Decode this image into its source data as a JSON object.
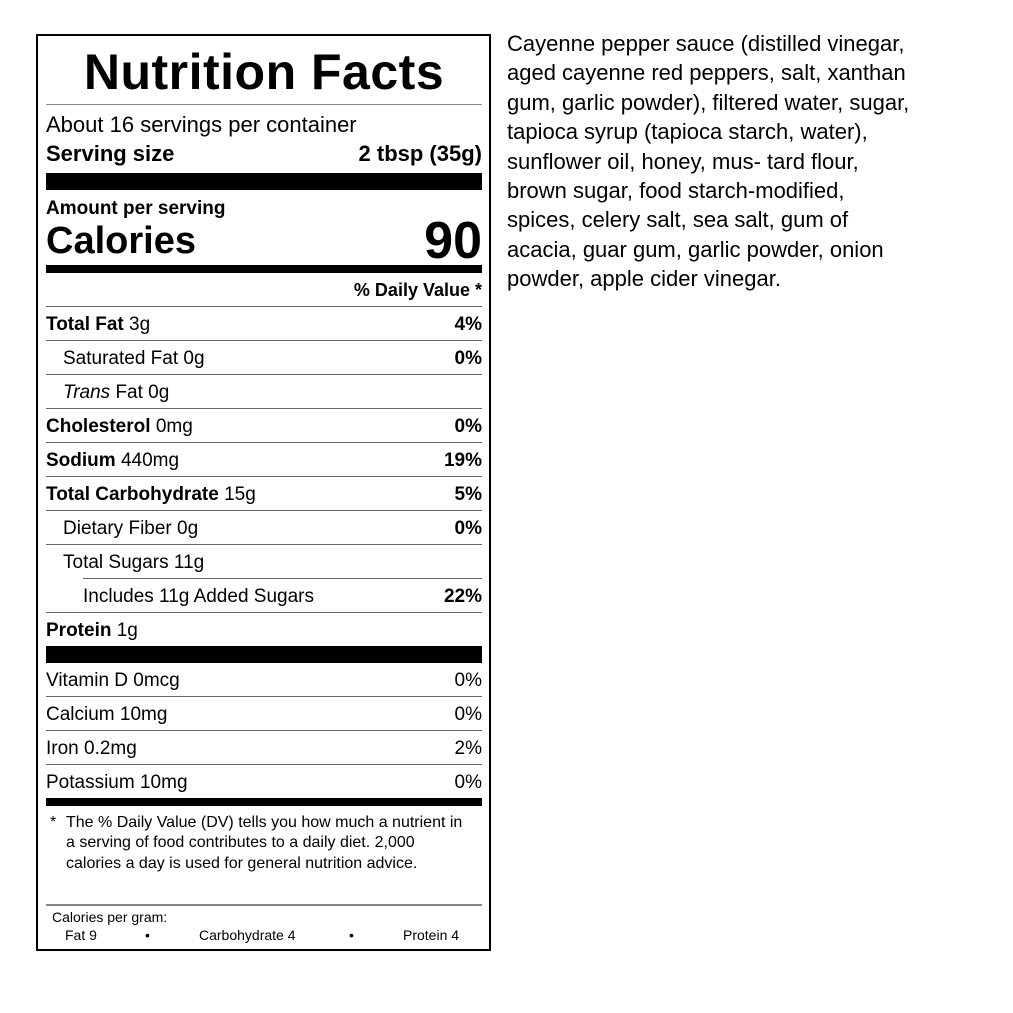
{
  "label": {
    "title": "Nutrition Facts",
    "servings_per_container": "About 16 servings per container",
    "serving_size_label": "Serving size",
    "serving_size_value": "2 tbsp (35g)",
    "amount_per_serving": "Amount per serving",
    "calories_label": "Calories",
    "calories_value": "90",
    "daily_value_header": "% Daily Value *",
    "nutrients": [
      {
        "name": "Total Fat",
        "amount": "3g",
        "dv": "4%"
      },
      {
        "name": "Saturated Fat",
        "amount": "0g",
        "dv": "0%"
      },
      {
        "name": "Trans",
        "suffix": "Fat 0g",
        "dv": ""
      },
      {
        "name": "Cholesterol",
        "amount": "0mg",
        "dv": "0%"
      },
      {
        "name": "Sodium",
        "amount": "440mg",
        "dv": "19%"
      },
      {
        "name": "Total Carbohydrate",
        "amount": "15g",
        "dv": "5%"
      },
      {
        "name": "Dietary Fiber",
        "amount": "0g",
        "dv": "0%"
      },
      {
        "name": "Total Sugars",
        "amount": "11g",
        "dv": ""
      },
      {
        "name": "Includes 11g Added Sugars",
        "amount": "",
        "dv": "22%"
      },
      {
        "name": "Protein",
        "amount": "1g",
        "dv": ""
      }
    ],
    "vitamins": [
      {
        "name": "Vitamin D 0mcg",
        "dv": "0%"
      },
      {
        "name": "Calcium 10mg",
        "dv": "0%"
      },
      {
        "name": "Iron 0.2mg",
        "dv": "2%"
      },
      {
        "name": "Potassium 10mg",
        "dv": "0%"
      }
    ],
    "footnote_star": "*",
    "footnote": "The % Daily Value (DV) tells you how much a nutrient in a serving of food contributes to a daily diet. 2,000 calories a day is used for general nutrition advice.",
    "calories_per_gram_label": "Calories per gram:",
    "cpg_fat": "Fat 9",
    "cpg_carb": "Carbohydrate 4",
    "cpg_protein": "Protein 4",
    "bullet": "•"
  },
  "ingredients": {
    "lines": [
      "Cayenne pepper sauce (distilled vinegar,",
      "aged cayenne red peppers, salt, xanthan",
      "gum, garlic powder), filtered water, sugar,",
      "tapioca syrup (tapioca starch, water),",
      "sunflower oil, honey, mus- tard flour,",
      "brown sugar, food starch-modified,",
      "spices, celery salt, sea salt, gum of",
      "acacia, guar gum, garlic powder, onion",
      "powder, apple cider vinegar."
    ]
  }
}
